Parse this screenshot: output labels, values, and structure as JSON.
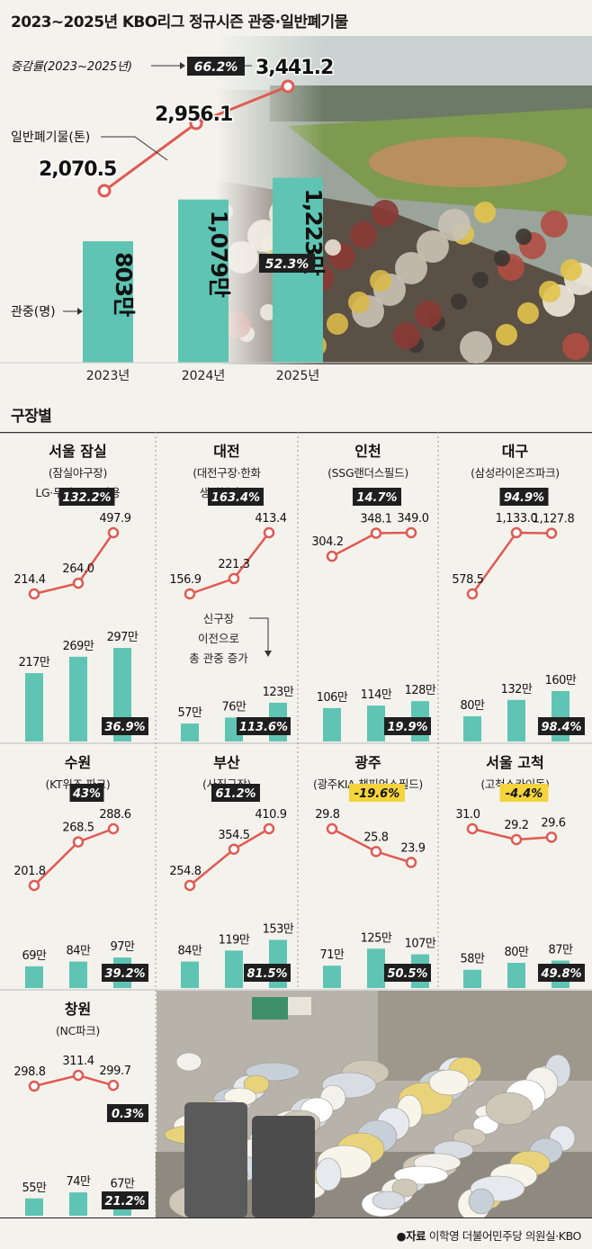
{
  "title": "2023~2025년 KBO리그 정규시즌 관중·일반폐기물",
  "colors": {
    "line": "#e05a52",
    "bar": "#5fc4b3",
    "badge_dark": "#1f1f1f",
    "badge_yellow": "#f5d43c"
  },
  "top": {
    "growth_label": "증감률(2023~2025년)",
    "waste_label": "일반폐기물(톤)",
    "attendance_label": "관중(명)",
    "waste_growth": "66.2%",
    "attendance_growth": "52.3%",
    "years": [
      "2023년",
      "2024년",
      "2025년"
    ],
    "waste_text": [
      "2,070.5",
      "2,956.1",
      "3,441.2"
    ],
    "waste": [
      2070.5,
      2956.1,
      3441.2
    ],
    "attendance_text": [
      "803만",
      "1,079만",
      "1,223만"
    ],
    "attendance": [
      803,
      1079,
      1223
    ],
    "photo_icon": "stadium-crowd-photo"
  },
  "section_title": "구장별",
  "stadiums": [
    {
      "name": "서울 잠실",
      "venue": [
        "(잠실야구장)",
        "LG·두산 공동 사용"
      ],
      "waste": [
        214.4,
        264.0,
        497.9
      ],
      "waste_text": [
        "214.4",
        "264.0",
        "497.9"
      ],
      "waste_growth": "132.2%",
      "waste_badge": "dark",
      "attendance": [
        217,
        269,
        297
      ],
      "attendance_text": [
        "217만",
        "269만",
        "297만"
      ],
      "attendance_growth": "36.9%"
    },
    {
      "name": "대전",
      "venue": [
        "(대전구장·한화",
        "생명볼파크)"
      ],
      "waste": [
        156.9,
        221.3,
        413.4
      ],
      "waste_text": [
        "156.9",
        "221.3",
        "413.4"
      ],
      "waste_growth": "163.4%",
      "waste_badge": "dark",
      "attendance": [
        57,
        76,
        123
      ],
      "attendance_text": [
        "57만",
        "76만",
        "123만"
      ],
      "attendance_growth": "113.6%",
      "note": [
        "신구장",
        "이전으로",
        "총 관중 증가"
      ]
    },
    {
      "name": "인천",
      "venue": [
        "(SSG랜더스필드)"
      ],
      "waste": [
        304.2,
        348.1,
        349.0
      ],
      "waste_text": [
        "304.2",
        "348.1",
        "349.0"
      ],
      "waste_growth": "14.7%",
      "waste_badge": "dark",
      "attendance": [
        106,
        114,
        128
      ],
      "attendance_text": [
        "106만",
        "114만",
        "128만"
      ],
      "attendance_growth": "19.9%"
    },
    {
      "name": "대구",
      "venue": [
        "(삼성라이온즈파크)"
      ],
      "waste": [
        578.5,
        1133.0,
        1127.8
      ],
      "waste_text": [
        "578.5",
        "1,133.0",
        "1,127.8"
      ],
      "waste_growth": "94.9%",
      "waste_badge": "dark",
      "attendance": [
        80,
        132,
        160
      ],
      "attendance_text": [
        "80만",
        "132만",
        "160만"
      ],
      "attendance_growth": "98.4%"
    },
    {
      "name": "수원",
      "venue": [
        "(KT위즈 파크)"
      ],
      "waste": [
        201.8,
        268.5,
        288.6
      ],
      "waste_text": [
        "201.8",
        "268.5",
        "288.6"
      ],
      "waste_growth": "43%",
      "waste_badge": "dark",
      "attendance": [
        69,
        84,
        97
      ],
      "attendance_text": [
        "69만",
        "84만",
        "97만"
      ],
      "attendance_growth": "39.2%"
    },
    {
      "name": "부산",
      "venue": [
        "(사직구장)"
      ],
      "waste": [
        254.8,
        354.5,
        410.9
      ],
      "waste_text": [
        "254.8",
        "354.5",
        "410.9"
      ],
      "waste_growth": "61.2%",
      "waste_badge": "dark",
      "attendance": [
        84,
        119,
        153
      ],
      "attendance_text": [
        "84만",
        "119만",
        "153만"
      ],
      "attendance_growth": "81.5%"
    },
    {
      "name": "광주",
      "venue": [
        "(광주KIA 챔피언스필드)"
      ],
      "waste": [
        29.8,
        25.8,
        23.9
      ],
      "waste_text": [
        "29.8",
        "25.8",
        "23.9"
      ],
      "waste_growth": "-19.6%",
      "waste_badge": "yellow",
      "attendance": [
        71,
        125,
        107
      ],
      "attendance_text": [
        "71만",
        "125만",
        "107만"
      ],
      "attendance_growth": "50.5%"
    },
    {
      "name": "서울 고척",
      "venue": [
        "(고척스카이돔)"
      ],
      "waste": [
        31.0,
        29.2,
        29.6
      ],
      "waste_text": [
        "31.0",
        "29.2",
        "29.6"
      ],
      "waste_growth": "-4.4%",
      "waste_badge": "yellow",
      "attendance": [
        58,
        80,
        87
      ],
      "attendance_text": [
        "58만",
        "80만",
        "87만"
      ],
      "attendance_growth": "49.8%"
    },
    {
      "name": "창원",
      "venue": [
        "(NC파크)"
      ],
      "waste": [
        298.8,
        311.4,
        299.7
      ],
      "waste_text": [
        "298.8",
        "311.4",
        "299.7"
      ],
      "waste_growth": "0.3%",
      "waste_badge": "dark",
      "attendance": [
        55,
        74,
        67
      ],
      "attendance_text": [
        "55만",
        "74만",
        "67만"
      ],
      "attendance_growth": "21.2%"
    }
  ],
  "photo_icon_bottom": "garbage-pile-photo",
  "footer": {
    "prefix": "●자료",
    "source": "이학영 더불어민주당 의원실·KBO"
  },
  "chart_data": [
    {
      "type": "line",
      "title": "2023~2025년 KBO리그 정규시즌 관중·일반폐기물",
      "series": [
        {
          "name": "일반폐기물(톤)",
          "x": [
            "2023년",
            "2024년",
            "2025년"
          ],
          "values": [
            2070.5,
            2956.1,
            3441.2
          ]
        }
      ]
    },
    {
      "type": "bar",
      "series": [
        {
          "name": "관중(명)",
          "values": [
            803,
            1079,
            1223
          ]
        }
      ],
      "categories": [
        "2023년",
        "2024년",
        "2025년"
      ]
    }
  ]
}
